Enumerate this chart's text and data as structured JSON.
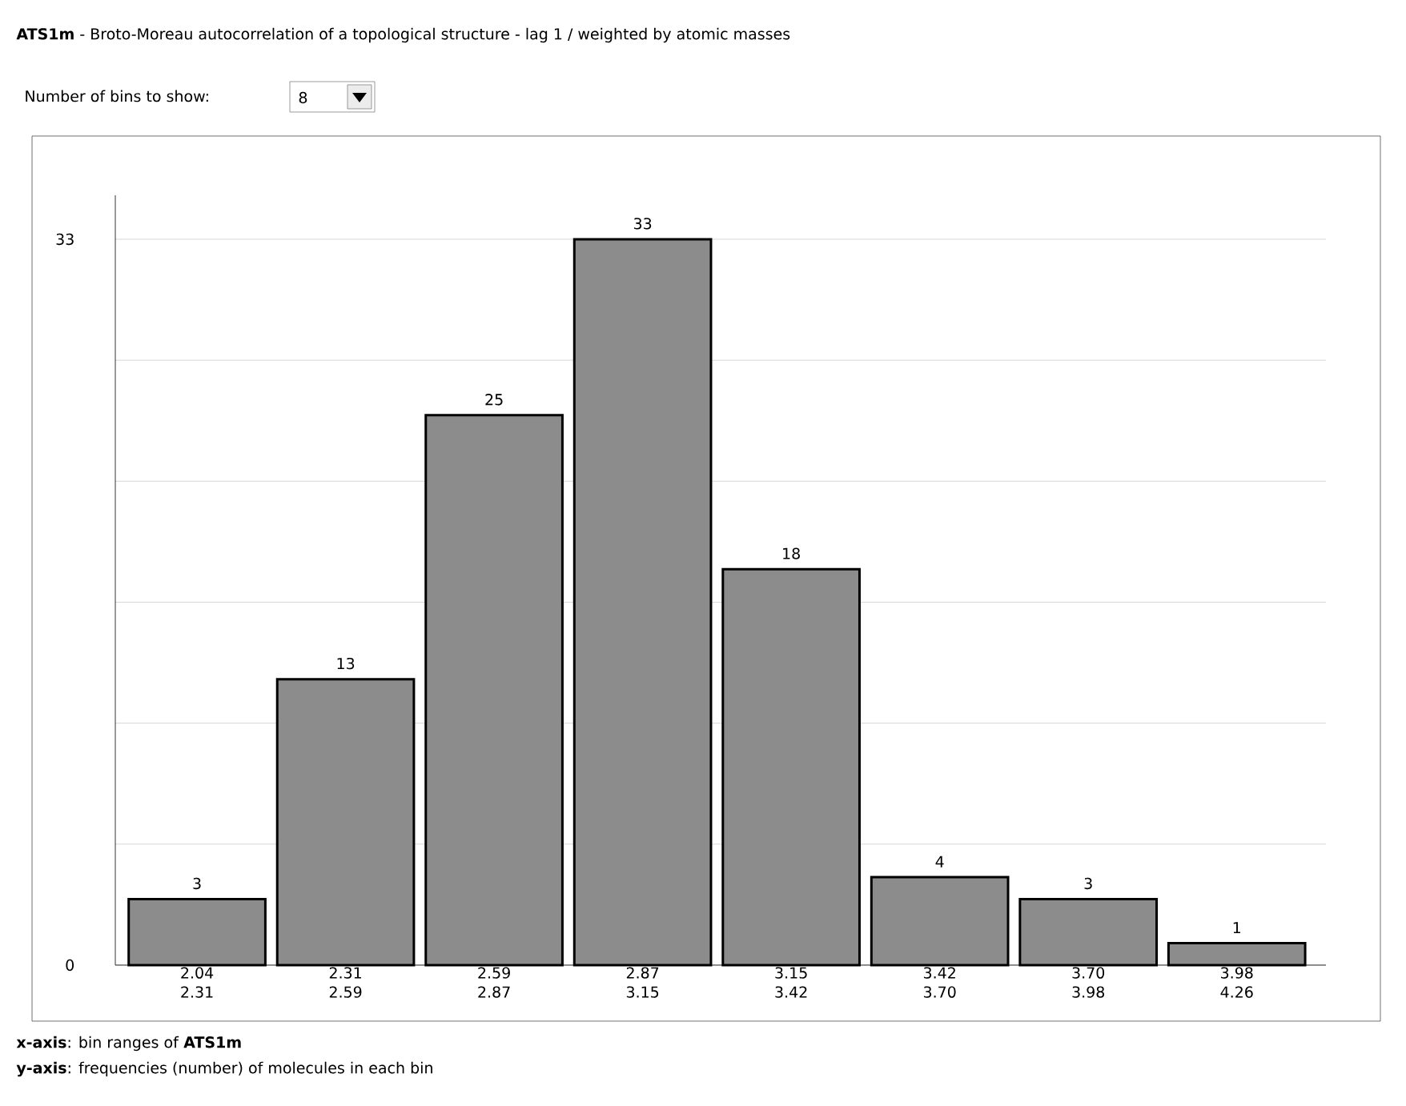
{
  "chart_data": {
    "type": "bar",
    "title": "**ATS1m** - Broto-Moreau autocorrelation of a topological structure - lag 1 / weighted by atomic masses",
    "categories": [
      "2.04 2.31",
      "2.31 2.59",
      "2.59 2.87",
      "2.87 3.15",
      "3.15 3.42",
      "3.42 3.70",
      "3.70 3.98",
      "3.98 4.26"
    ],
    "values": [
      3,
      13,
      25,
      33,
      18,
      4,
      3,
      1
    ],
    "color": "#8c8c8c",
    "ylim": [
      0,
      35
    ],
    "yticks": [
      0,
      {
        "value": 5.5,
        "label": null
      },
      {
        "value": 11,
        "label": null
      },
      {
        "value": 16.5,
        "label": null
      },
      {
        "value": 22,
        "label": null
      },
      {
        "value": 27.5,
        "label": null
      },
      33
    ],
    "grid": "y",
    "data_labels": true,
    "annotations": [
      "Number of bins to show:",
      "8",
      "**x-axis**: bin ranges of **ATS1m**",
      "**y-axis**: frequencies (number) of molecules in each bin"
    ]
  }
}
